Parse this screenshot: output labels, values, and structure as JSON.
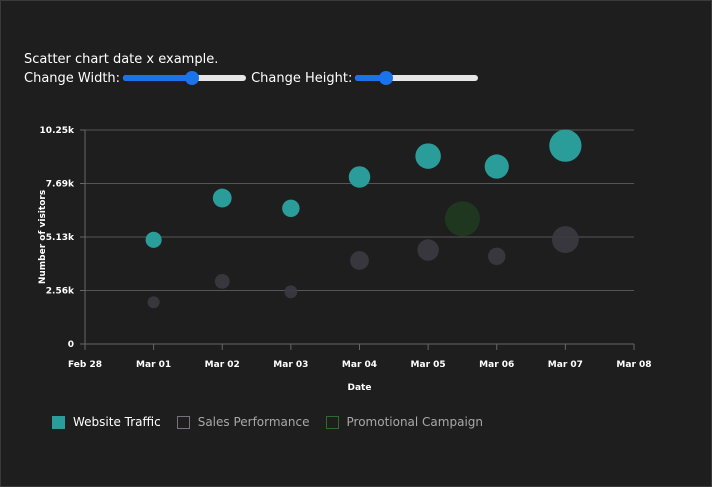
{
  "demo_title": "Scatter chart date x example.",
  "controls": {
    "width_label": "Change Width:",
    "height_label": "Change Height:",
    "width_value": 0.57,
    "height_value": 0.22
  },
  "chart_data": {
    "type": "scatter",
    "xlabel": "Date",
    "ylabel": "Number of visitors",
    "x_ticks": [
      "Feb 28",
      "Mar 01",
      "Mar 02",
      "Mar 03",
      "Mar 04",
      "Mar 05",
      "Mar 06",
      "Mar 07",
      "Mar 08"
    ],
    "y_ticks": [
      "0",
      "2.56k",
      "5.13k",
      "7.69k",
      "10.25k"
    ],
    "ylim": [
      0,
      10250
    ],
    "grid": true,
    "legend_position": "bottom-left",
    "series": [
      {
        "name": "Website Traffic",
        "color": "#2a9d9a",
        "active": true,
        "points": [
          {
            "x": "Mar 01",
            "y": 4990,
            "size": 3
          },
          {
            "x": "Mar 02",
            "y": 6990,
            "size": 4
          },
          {
            "x": "Mar 03",
            "y": 6500,
            "size": 3.5
          },
          {
            "x": "Mar 04",
            "y": 8000,
            "size": 5
          },
          {
            "x": "Mar 05",
            "y": 9000,
            "size": 6.5
          },
          {
            "x": "Mar 06",
            "y": 8500,
            "size": 6
          },
          {
            "x": "Mar 07",
            "y": 9500,
            "size": 9
          }
        ]
      },
      {
        "name": "Sales Performance",
        "color": "#3a3a40",
        "active": false,
        "points": [
          {
            "x": "Mar 01",
            "y": 2000,
            "size": 1.5
          },
          {
            "x": "Mar 02",
            "y": 3000,
            "size": 2.5
          },
          {
            "x": "Mar 03",
            "y": 2500,
            "size": 1.8
          },
          {
            "x": "Mar 04",
            "y": 4000,
            "size": 4
          },
          {
            "x": "Mar 05",
            "y": 4500,
            "size": 5
          },
          {
            "x": "Mar 06",
            "y": 4200,
            "size": 3.5
          },
          {
            "x": "Mar 07",
            "y": 5000,
            "size": 7
          }
        ]
      },
      {
        "name": "Promotional Campaign",
        "color": "#1f3a1f",
        "active": false,
        "points": [
          {
            "x": "Mar 05 12:00",
            "y": 6000,
            "size": 10
          }
        ]
      }
    ]
  }
}
